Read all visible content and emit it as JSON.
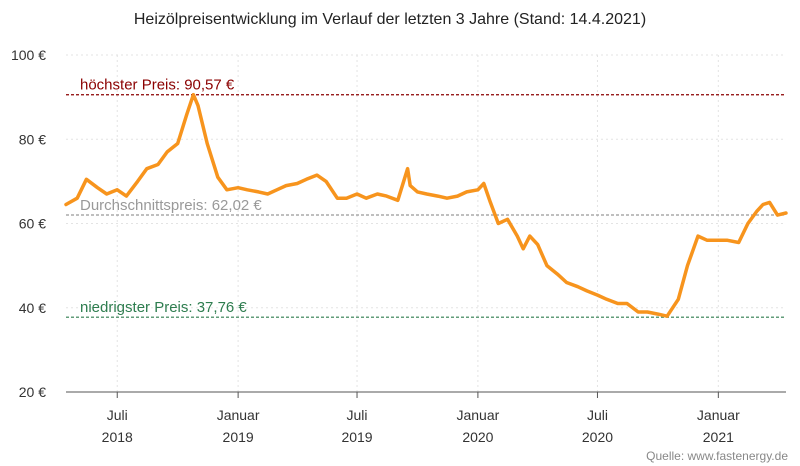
{
  "chart_data": {
    "type": "line",
    "title": "Heizölpreisentwicklung im Verlauf der letzten 3 Jahre (Stand: 14.4.2021)",
    "xlabel": "",
    "ylabel": "",
    "source": "Quelle: www.fastenergy.de",
    "ylim": [
      20,
      100
    ],
    "xlim": [
      "2018-04-14",
      "2021-04-14"
    ],
    "y_ticks": [
      {
        "value": 20,
        "label": "20 €"
      },
      {
        "value": 40,
        "label": "40 €"
      },
      {
        "value": 60,
        "label": "60 €"
      },
      {
        "value": 80,
        "label": "80 €"
      },
      {
        "value": 100,
        "label": "100 €"
      }
    ],
    "x_ticks": [
      {
        "date": "2018-07-01",
        "line1": "Juli",
        "line2": "2018"
      },
      {
        "date": "2019-01-01",
        "line1": "Januar",
        "line2": "2019"
      },
      {
        "date": "2019-07-01",
        "line1": "Juli",
        "line2": "2019"
      },
      {
        "date": "2020-01-01",
        "line1": "Januar",
        "line2": "2020"
      },
      {
        "date": "2020-07-01",
        "line1": "Juli",
        "line2": "2020"
      },
      {
        "date": "2021-01-01",
        "line1": "Januar",
        "line2": "2021"
      }
    ],
    "reference_lines": [
      {
        "value": 90.57,
        "label": "höchster Preis: 90,57 €",
        "color": "#8b0000"
      },
      {
        "value": 62.02,
        "label": "Durchschnittspreis: 62,02 €",
        "color": "#999999"
      },
      {
        "value": 37.76,
        "label": "niedrigster Preis: 37,76 €",
        "color": "#2e7d4f"
      }
    ],
    "grid": true,
    "series": [
      {
        "color": "#f7941d",
        "x": [
          "2018-04-14",
          "2018-05-01",
          "2018-05-15",
          "2018-06-01",
          "2018-06-15",
          "2018-07-01",
          "2018-07-15",
          "2018-08-01",
          "2018-08-15",
          "2018-09-01",
          "2018-09-15",
          "2018-10-01",
          "2018-10-15",
          "2018-10-25",
          "2018-11-01",
          "2018-11-15",
          "2018-12-01",
          "2018-12-15",
          "2019-01-01",
          "2019-01-15",
          "2019-02-01",
          "2019-02-15",
          "2019-03-01",
          "2019-03-15",
          "2019-04-01",
          "2019-04-15",
          "2019-05-01",
          "2019-05-15",
          "2019-06-01",
          "2019-06-15",
          "2019-07-01",
          "2019-07-15",
          "2019-08-01",
          "2019-08-15",
          "2019-09-01",
          "2019-09-16",
          "2019-09-20",
          "2019-10-01",
          "2019-10-15",
          "2019-11-01",
          "2019-11-15",
          "2019-12-01",
          "2019-12-15",
          "2020-01-01",
          "2020-01-10",
          "2020-01-20",
          "2020-02-01",
          "2020-02-15",
          "2020-03-01",
          "2020-03-10",
          "2020-03-20",
          "2020-04-01",
          "2020-04-15",
          "2020-05-01",
          "2020-05-15",
          "2020-06-01",
          "2020-06-15",
          "2020-07-01",
          "2020-07-15",
          "2020-08-01",
          "2020-08-15",
          "2020-09-01",
          "2020-09-15",
          "2020-10-01",
          "2020-10-15",
          "2020-11-01",
          "2020-11-15",
          "2020-12-01",
          "2020-12-15",
          "2021-01-01",
          "2021-01-15",
          "2021-02-01",
          "2021-02-15",
          "2021-03-01",
          "2021-03-10",
          "2021-03-20",
          "2021-04-01",
          "2021-04-14"
        ],
        "y": [
          64.5,
          66,
          70.5,
          68.5,
          67,
          68,
          66.5,
          70,
          73,
          74,
          77,
          79,
          86,
          90.57,
          88,
          79,
          71,
          68,
          68.5,
          68,
          67.5,
          67,
          68,
          69,
          69.5,
          70.5,
          71.5,
          70,
          66,
          66,
          67,
          66,
          67,
          66.5,
          65.5,
          73,
          69,
          67.5,
          67,
          66.5,
          66,
          66.5,
          67.5,
          68,
          69.5,
          65,
          60,
          61,
          57,
          54,
          57,
          55,
          50,
          48,
          46,
          45,
          44,
          43,
          42,
          41,
          41,
          39,
          39,
          38.5,
          38,
          42,
          50,
          57,
          56,
          56,
          56,
          55.5,
          60,
          63,
          64.5,
          65,
          62,
          62.5
        ]
      }
    ]
  }
}
